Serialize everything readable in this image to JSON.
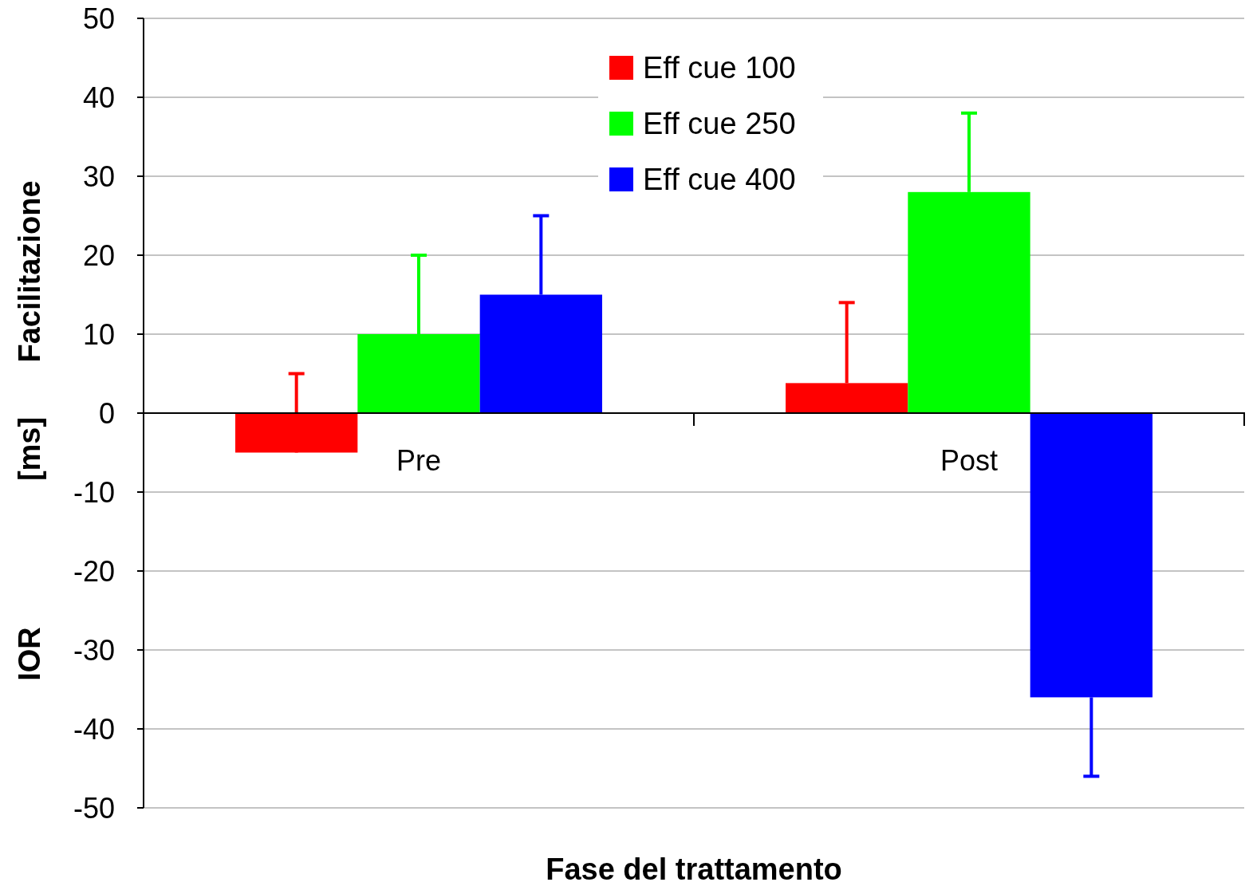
{
  "chart_data": {
    "type": "bar",
    "xlabel": "Fase del trattamento",
    "ylabel": "[ms]",
    "annotations": [
      "Facilitazione",
      "IOR"
    ],
    "categories": [
      "Pre",
      "Post"
    ],
    "series": [
      {
        "name": "Eff cue 100",
        "color": "#ff0000",
        "values": [
          -5,
          3.8
        ],
        "errors": [
          [
            -5,
            5
          ],
          [
            3.8,
            14
          ]
        ]
      },
      {
        "name": "Eff cue 250",
        "color": "#00ff00",
        "values": [
          10,
          28
        ],
        "errors": [
          [
            10,
            20
          ],
          [
            28,
            38
          ]
        ]
      },
      {
        "name": "Eff cue 400",
        "color": "#0000ff",
        "values": [
          15,
          -36
        ],
        "errors": [
          [
            15,
            25
          ],
          [
            -46,
            -36
          ]
        ]
      }
    ],
    "ylim": [
      -50,
      50
    ],
    "yticks": [
      -50,
      -40,
      -30,
      -20,
      -10,
      0,
      10,
      20,
      30,
      40,
      50
    ],
    "grid": "y",
    "legend": "top"
  }
}
